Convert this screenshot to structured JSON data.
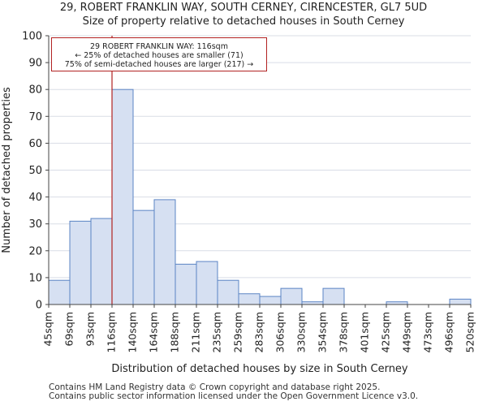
{
  "title": {
    "line1": "29, ROBERT FRANKLIN WAY, SOUTH CERNEY, CIRENCESTER, GL7 5UD",
    "line2": "Size of property relative to detached houses in South Cerney"
  },
  "annotation": {
    "line1": "29 ROBERT FRANKLIN WAY: 116sqm",
    "line2": "← 25% of detached houses are smaller (71)",
    "line3": "75% of semi-detached houses are larger (217) →"
  },
  "footer": {
    "line1": "Contains HM Land Registry data © Crown copyright and database right 2025.",
    "line2": "Contains public sector information licensed under the Open Government Licence v3.0."
  },
  "colors": {
    "bar_fill": "#d6e0f2",
    "bar_edge": "#5b84c4",
    "marker": "#b22222",
    "grid": "#d9dde6"
  },
  "chart_data": {
    "type": "bar",
    "title": "Size of property relative to detached houses in South Cerney",
    "xlabel": "Distribution of detached houses by size in South Cerney",
    "ylabel": "Number of detached properties",
    "ylim": [
      0,
      100
    ],
    "yticks": [
      0,
      10,
      20,
      30,
      40,
      50,
      60,
      70,
      80,
      90,
      100
    ],
    "bin_edges": [
      "45sqm",
      "69sqm",
      "93sqm",
      "116sqm",
      "140sqm",
      "164sqm",
      "188sqm",
      "211sqm",
      "235sqm",
      "259sqm",
      "283sqm",
      "306sqm",
      "330sqm",
      "354sqm",
      "378sqm",
      "401sqm",
      "425sqm",
      "449sqm",
      "473sqm",
      "496sqm",
      "520sqm"
    ],
    "values": [
      9,
      31,
      32,
      80,
      35,
      39,
      15,
      16,
      9,
      4,
      3,
      6,
      1,
      6,
      0,
      0,
      1,
      0,
      0,
      2
    ],
    "marker_value_sqm": 116,
    "marker_edge_index": 3,
    "grid": true
  }
}
